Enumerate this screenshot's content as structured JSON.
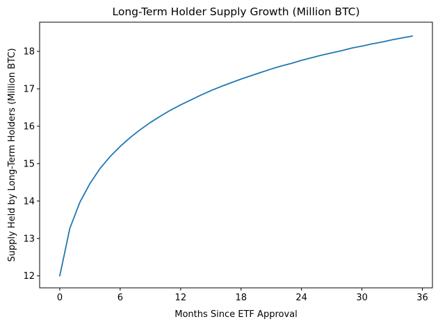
{
  "chart_data": {
    "type": "line",
    "title": "Long-Term Holder Supply Growth (Million BTC)",
    "xlabel": "Months Since ETF Approval",
    "ylabel": "Supply Held by Long-Term Holders (Million BTC)",
    "xlim": [
      -2,
      37
    ],
    "ylim": [
      11.68,
      18.78
    ],
    "xticks": [
      0,
      6,
      12,
      18,
      24,
      30,
      36
    ],
    "yticks": [
      12,
      13,
      14,
      15,
      16,
      17,
      18
    ],
    "grid": false,
    "legend": "none",
    "series": [
      {
        "color": "#1f77b4",
        "x": [
          0,
          1,
          2,
          3,
          4,
          5,
          6,
          7,
          8,
          9,
          10,
          11,
          12,
          13,
          14,
          15,
          16,
          17,
          18,
          19,
          20,
          21,
          22,
          23,
          24,
          25,
          26,
          27,
          28,
          29,
          30,
          31,
          32,
          33,
          34,
          35
        ],
        "y": [
          12.0,
          13.27,
          13.97,
          14.47,
          14.87,
          15.19,
          15.46,
          15.7,
          15.91,
          16.1,
          16.27,
          16.43,
          16.57,
          16.7,
          16.83,
          16.95,
          17.06,
          17.16,
          17.26,
          17.35,
          17.44,
          17.53,
          17.61,
          17.68,
          17.76,
          17.83,
          17.9,
          17.96,
          18.02,
          18.09,
          18.14,
          18.2,
          18.25,
          18.31,
          18.36,
          18.41
        ]
      }
    ]
  }
}
